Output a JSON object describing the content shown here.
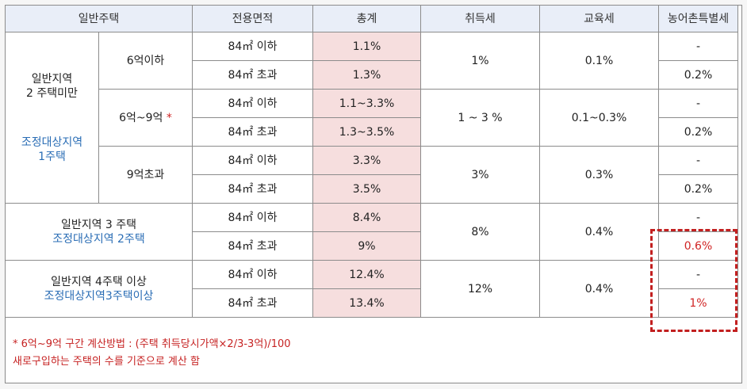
{
  "header": {
    "category": "일반주택",
    "area": "전용면적",
    "total": "총계",
    "acquisition_tax": "취득세",
    "education_tax": "교육세",
    "rural_tax": "농어촌특별세"
  },
  "group1": {
    "label_line1": "일반지역",
    "label_line2": "2 주택미만",
    "adjusted_line1": "조정대상지역",
    "adjusted_line2": "1주택",
    "price_bands": [
      {
        "label": "6억이하",
        "star": "",
        "acquisition": "1%",
        "education": "0.1%",
        "rows": [
          {
            "area": "84㎡ 이하",
            "total": "1.1%",
            "rural": "-"
          },
          {
            "area": "84㎡ 초과",
            "total": "1.3%",
            "rural": "0.2%"
          }
        ]
      },
      {
        "label": "6억~9억",
        "star": "*",
        "acquisition": "1 ~ 3 %",
        "education": "0.1~0.3%",
        "rows": [
          {
            "area": "84㎡ 이하",
            "total": "1.1~3.3%",
            "rural": "-"
          },
          {
            "area": "84㎡ 초과",
            "total": "1.3~3.5%",
            "rural": "0.2%"
          }
        ]
      },
      {
        "label": "9억초과",
        "star": "",
        "acquisition": "3%",
        "education": "0.3%",
        "rows": [
          {
            "area": "84㎡ 이하",
            "total": "3.3%",
            "rural": "-"
          },
          {
            "area": "84㎡ 초과",
            "total": "3.5%",
            "rural": "0.2%"
          }
        ]
      }
    ]
  },
  "group2": {
    "label": "일반지역 3 주택",
    "adjusted": "조정대상지역 2주택",
    "acquisition": "8%",
    "education": "0.4%",
    "rows": [
      {
        "area": "84㎡ 이하",
        "total": "8.4%",
        "rural": "-"
      },
      {
        "area": "84㎡ 초과",
        "total": "9%",
        "rural": "0.6%"
      }
    ]
  },
  "group3": {
    "label": "일반지역 4주택 이상",
    "adjusted": "조정대상지역3주택이상",
    "acquisition": "12%",
    "education": "0.4%",
    "rows": [
      {
        "area": "84㎡ 이하",
        "total": "12.4%",
        "rural": "-"
      },
      {
        "area": "84㎡ 초과",
        "total": "13.4%",
        "rural": "1%"
      }
    ]
  },
  "footnote": {
    "line1": "* 6억~9억 구간 계산방법 : (주택 취득당시가액×2/3-3억)/100",
    "line2": "새로구입하는 주택의 수를 기준으로 계산 함"
  },
  "colors": {
    "header_bg": "#e9eef8",
    "total_bg": "#f6dede",
    "adjusted_text": "#2a6db5",
    "highlight": "#c21f1f"
  }
}
